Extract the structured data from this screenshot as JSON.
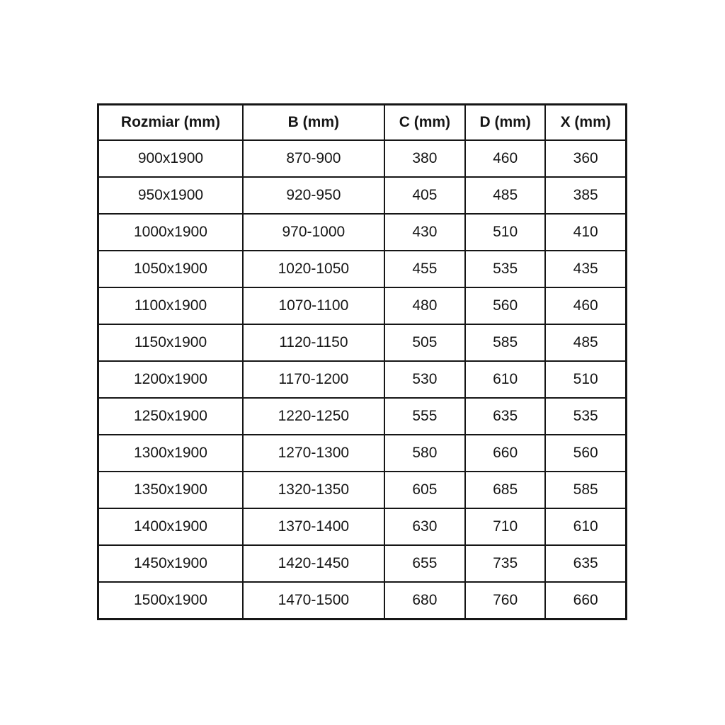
{
  "colors": {
    "background": "#ffffff",
    "border": "#161616",
    "text": "#161616"
  },
  "chart_data": {
    "type": "table",
    "title": "",
    "columns": [
      "Rozmiar (mm)",
      "B (mm)",
      "C (mm)",
      "D (mm)",
      "X (mm)"
    ],
    "rows": [
      [
        "900x1900",
        "870-900",
        "380",
        "460",
        "360"
      ],
      [
        "950x1900",
        "920-950",
        "405",
        "485",
        "385"
      ],
      [
        "1000x1900",
        "970-1000",
        "430",
        "510",
        "410"
      ],
      [
        "1050x1900",
        "1020-1050",
        "455",
        "535",
        "435"
      ],
      [
        "1100x1900",
        "1070-1100",
        "480",
        "560",
        "460"
      ],
      [
        "1150x1900",
        "1120-1150",
        "505",
        "585",
        "485"
      ],
      [
        "1200x1900",
        "1170-1200",
        "530",
        "610",
        "510"
      ],
      [
        "1250x1900",
        "1220-1250",
        "555",
        "635",
        "535"
      ],
      [
        "1300x1900",
        "1270-1300",
        "580",
        "660",
        "560"
      ],
      [
        "1350x1900",
        "1320-1350",
        "605",
        "685",
        "585"
      ],
      [
        "1400x1900",
        "1370-1400",
        "630",
        "710",
        "610"
      ],
      [
        "1450x1900",
        "1420-1450",
        "655",
        "735",
        "635"
      ],
      [
        "1500x1900",
        "1470-1500",
        "680",
        "760",
        "660"
      ]
    ]
  }
}
